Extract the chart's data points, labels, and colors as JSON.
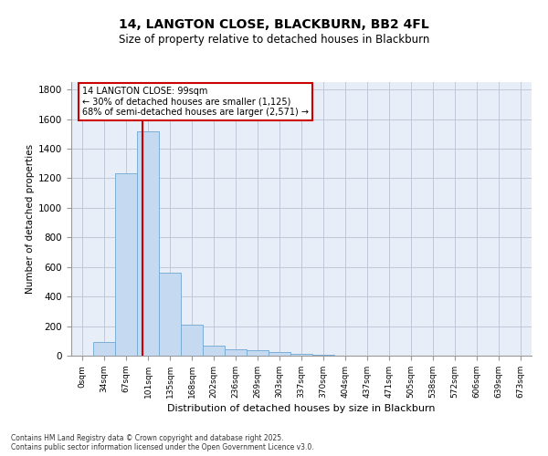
{
  "title_line1": "14, LANGTON CLOSE, BLACKBURN, BB2 4FL",
  "title_line2": "Size of property relative to detached houses in Blackburn",
  "xlabel": "Distribution of detached houses by size in Blackburn",
  "ylabel": "Number of detached properties",
  "categories": [
    "0sqm",
    "34sqm",
    "67sqm",
    "101sqm",
    "135sqm",
    "168sqm",
    "202sqm",
    "236sqm",
    "269sqm",
    "303sqm",
    "337sqm",
    "370sqm",
    "404sqm",
    "437sqm",
    "471sqm",
    "505sqm",
    "538sqm",
    "572sqm",
    "606sqm",
    "639sqm",
    "673sqm"
  ],
  "values": [
    0,
    90,
    1235,
    1515,
    560,
    210,
    65,
    45,
    35,
    27,
    15,
    5,
    0,
    0,
    0,
    0,
    0,
    0,
    0,
    0,
    0
  ],
  "bar_color": "#c5d9f1",
  "bar_edge_color": "#7bafd4",
  "ylim": [
    0,
    1850
  ],
  "yticks": [
    0,
    200,
    400,
    600,
    800,
    1000,
    1200,
    1400,
    1600,
    1800
  ],
  "property_line_x": 2.75,
  "annotation_text": "14 LANGTON CLOSE: 99sqm\n← 30% of detached houses are smaller (1,125)\n68% of semi-detached houses are larger (2,571) →",
  "annotation_box_color": "#cc0000",
  "vline_color": "#cc0000",
  "background_color": "#e8eef8",
  "grid_color": "#c0c8d8",
  "footer_line1": "Contains HM Land Registry data © Crown copyright and database right 2025.",
  "footer_line2": "Contains public sector information licensed under the Open Government Licence v3.0."
}
